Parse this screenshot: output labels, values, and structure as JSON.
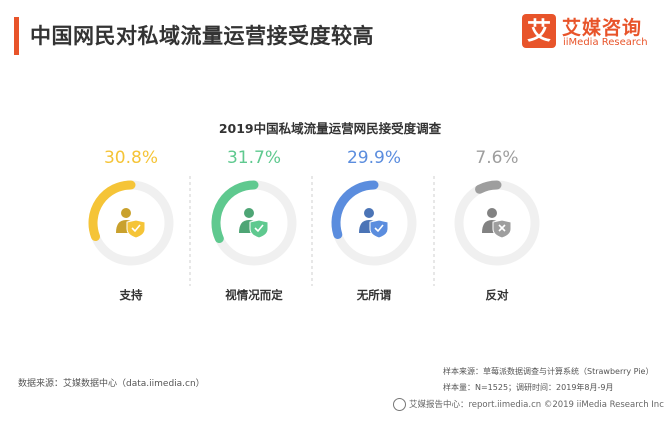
{
  "header": {
    "title": "中国网民对私域流量运营接受度较高"
  },
  "logo": {
    "mark": "艾",
    "cn": "艾媒咨询",
    "en": "iiMedia Research"
  },
  "chart_data": {
    "type": "pie",
    "title": "2019中国私域流量运营网民接受度调查",
    "categories": [
      "支持",
      "视情况而定",
      "无所谓",
      "反对"
    ],
    "values": [
      30.8,
      31.7,
      29.9,
      7.6
    ],
    "value_labels": [
      "30.8%",
      "31.7%",
      "29.9%",
      "7.6%"
    ],
    "unit": "%",
    "colors": [
      "#f5c437",
      "#5fc98f",
      "#5b8dde",
      "#9e9e9e"
    ],
    "icons": [
      "user-check-icon",
      "user-check-icon",
      "user-check-icon",
      "user-cross-icon"
    ]
  },
  "footer": {
    "source": "数据来源：艾媒数据中心（data.iimedia.cn）",
    "sample_source": "样本来源：草莓派数据调查与计算系统（Strawberry Pie）",
    "sample_info": "样本量：N=1525；调研时间：2019年8月-9月",
    "report_center": "艾媒报告中心：report.iimedia.cn  ©2019  iiMedia Research Inc"
  }
}
